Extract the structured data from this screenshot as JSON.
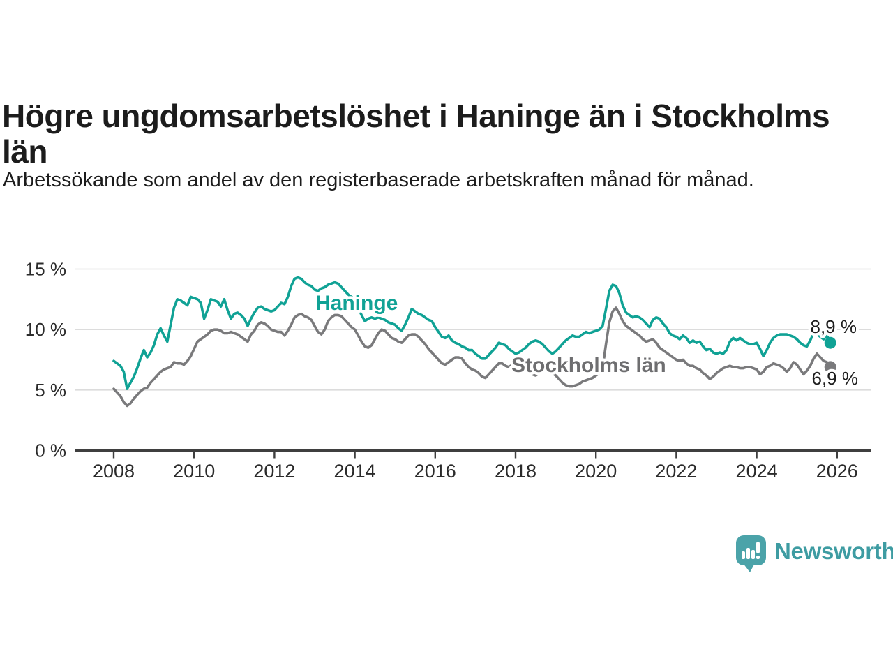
{
  "header": {
    "title": "Högre ungdomsarbetslöshet i Haninge än i Stockholms län",
    "subtitle": "Arbetssökande som andel av den registerbaserade arbetskraften månad för månad."
  },
  "chart_data": {
    "type": "line",
    "title": "Högre ungdomsarbetslöshet i Haninge än i Stockholms län",
    "xlabel": "",
    "ylabel": "",
    "grid": true,
    "legend_position": "inline-annotations",
    "x_start_year": 2008,
    "x_step_months": 1,
    "xlim": [
      2008,
      2026.4
    ],
    "ylim": [
      0,
      15.5
    ],
    "y_ticks": [
      {
        "value": 0,
        "label": "0 %"
      },
      {
        "value": 5,
        "label": "5 %"
      },
      {
        "value": 10,
        "label": "10 %"
      },
      {
        "value": 15,
        "label": "15 %"
      }
    ],
    "x_ticks": [
      {
        "value": 2008,
        "label": "2008"
      },
      {
        "value": 2010,
        "label": "2010"
      },
      {
        "value": 2012,
        "label": "2012"
      },
      {
        "value": 2014,
        "label": "2014"
      },
      {
        "value": 2016,
        "label": "2016"
      },
      {
        "value": 2018,
        "label": "2018"
      },
      {
        "value": 2020,
        "label": "2020"
      },
      {
        "value": 2022,
        "label": "2022"
      },
      {
        "value": 2024,
        "label": "2024"
      },
      {
        "value": 2026,
        "label": "2026"
      }
    ],
    "series": [
      {
        "name": "Stockholms län",
        "color": "#7a7a7c",
        "label_color": "#6e6e70",
        "end_label": "6,9 %",
        "values": [
          5.1,
          4.8,
          4.5,
          4.0,
          3.7,
          3.9,
          4.3,
          4.6,
          4.9,
          5.1,
          5.2,
          5.6,
          5.9,
          6.2,
          6.5,
          6.7,
          6.8,
          6.9,
          7.3,
          7.2,
          7.2,
          7.1,
          7.4,
          7.8,
          8.4,
          9.0,
          9.2,
          9.4,
          9.6,
          9.9,
          10.0,
          10.0,
          9.9,
          9.7,
          9.7,
          9.8,
          9.7,
          9.6,
          9.4,
          9.2,
          9.0,
          9.6,
          9.9,
          10.4,
          10.6,
          10.5,
          10.3,
          10.0,
          9.9,
          9.8,
          9.8,
          9.5,
          9.9,
          10.4,
          11.0,
          11.2,
          11.3,
          11.1,
          11.0,
          10.8,
          10.3,
          9.8,
          9.6,
          10.0,
          10.7,
          11.0,
          11.2,
          11.2,
          11.1,
          10.8,
          10.5,
          10.2,
          10.0,
          9.5,
          9.0,
          8.6,
          8.5,
          8.7,
          9.2,
          9.7,
          10.0,
          9.9,
          9.6,
          9.3,
          9.2,
          9.0,
          8.9,
          9.2,
          9.5,
          9.6,
          9.6,
          9.4,
          9.1,
          8.8,
          8.4,
          8.1,
          7.8,
          7.5,
          7.2,
          7.1,
          7.3,
          7.5,
          7.7,
          7.7,
          7.6,
          7.2,
          6.9,
          6.7,
          6.6,
          6.4,
          6.1,
          6.0,
          6.3,
          6.6,
          6.9,
          7.2,
          7.2,
          7.0,
          6.9,
          7.1,
          7.0,
          7.1,
          6.9,
          6.8,
          6.6,
          6.3,
          6.2,
          6.4,
          6.5,
          6.6,
          6.5,
          6.4,
          6.2,
          5.9,
          5.6,
          5.4,
          5.3,
          5.3,
          5.4,
          5.5,
          5.7,
          5.8,
          5.9,
          6.0,
          6.2,
          6.4,
          6.8,
          8.8,
          10.6,
          11.5,
          11.8,
          11.3,
          10.7,
          10.3,
          10.1,
          9.9,
          9.7,
          9.5,
          9.2,
          9.0,
          9.1,
          9.2,
          8.9,
          8.5,
          8.3,
          8.1,
          7.9,
          7.7,
          7.5,
          7.4,
          7.5,
          7.2,
          7.0,
          7.0,
          6.8,
          6.7,
          6.4,
          6.2,
          5.9,
          6.1,
          6.4,
          6.6,
          6.8,
          6.9,
          7.0,
          6.9,
          6.9,
          6.8,
          6.8,
          6.9,
          6.9,
          6.8,
          6.7,
          6.3,
          6.5,
          6.9,
          7.0,
          7.2,
          7.1,
          7.0,
          6.8,
          6.5,
          6.8,
          7.3,
          7.1,
          6.7,
          6.3,
          6.6,
          7.0,
          7.6,
          8.0,
          7.7,
          7.4,
          7.3,
          6.9
        ]
      },
      {
        "name": "Haninge",
        "color": "#10a295",
        "label_color": "#10a295",
        "end_label": "8,9 %",
        "values": [
          7.4,
          7.2,
          7.0,
          6.5,
          5.1,
          5.6,
          6.1,
          6.8,
          7.6,
          8.3,
          7.7,
          8.1,
          8.7,
          9.6,
          10.1,
          9.5,
          9.0,
          10.4,
          11.8,
          12.5,
          12.4,
          12.2,
          12.0,
          12.7,
          12.6,
          12.5,
          12.2,
          10.9,
          11.6,
          12.5,
          12.4,
          12.3,
          11.9,
          12.5,
          11.6,
          10.9,
          11.3,
          11.4,
          11.2,
          10.9,
          10.3,
          10.9,
          11.4,
          11.8,
          11.9,
          11.7,
          11.6,
          11.5,
          11.6,
          11.9,
          12.2,
          12.1,
          12.7,
          13.6,
          14.2,
          14.3,
          14.2,
          13.9,
          13.7,
          13.6,
          13.3,
          13.2,
          13.4,
          13.5,
          13.7,
          13.8,
          13.9,
          13.8,
          13.5,
          13.2,
          12.9,
          12.7,
          12.4,
          11.8,
          11.2,
          10.7,
          10.9,
          11.0,
          10.9,
          11.0,
          10.9,
          10.8,
          10.6,
          10.5,
          10.4,
          10.1,
          9.9,
          10.4,
          11.0,
          11.7,
          11.5,
          11.3,
          11.2,
          11.0,
          10.8,
          10.7,
          10.2,
          9.8,
          9.4,
          9.3,
          9.5,
          9.1,
          8.9,
          8.8,
          8.6,
          8.5,
          8.3,
          8.3,
          8.0,
          7.8,
          7.6,
          7.6,
          7.9,
          8.2,
          8.5,
          8.9,
          8.8,
          8.7,
          8.4,
          8.2,
          8.0,
          8.1,
          8.3,
          8.5,
          8.8,
          9.0,
          9.1,
          9.0,
          8.8,
          8.5,
          8.2,
          8.0,
          8.2,
          8.5,
          8.8,
          9.1,
          9.3,
          9.5,
          9.4,
          9.4,
          9.6,
          9.8,
          9.7,
          9.8,
          9.9,
          10.0,
          10.3,
          11.7,
          13.2,
          13.7,
          13.6,
          13.0,
          12.0,
          11.4,
          11.2,
          11.0,
          11.1,
          11.0,
          10.8,
          10.5,
          10.2,
          10.8,
          11.0,
          10.9,
          10.5,
          10.2,
          9.7,
          9.5,
          9.4,
          9.2,
          9.5,
          9.3,
          8.9,
          9.1,
          8.9,
          9.0,
          8.6,
          8.3,
          8.4,
          8.1,
          8.0,
          8.1,
          8.0,
          8.3,
          9.0,
          9.3,
          9.1,
          9.3,
          9.1,
          8.9,
          8.8,
          8.8,
          8.9,
          8.4,
          7.8,
          8.3,
          8.9,
          9.3,
          9.5,
          9.6,
          9.6,
          9.6,
          9.5,
          9.4,
          9.2,
          8.9,
          8.7,
          8.6,
          9.1,
          9.7,
          9.6,
          9.4,
          9.2,
          9.5,
          8.9
        ]
      }
    ]
  },
  "branding": {
    "logo_text": "Newsworthy",
    "logo_text_color": "#3e9ca2",
    "logo_icon_color": "#4ba3a9",
    "logo_icon": "bar-chart-speech-bubble-icon"
  },
  "colors": {
    "title": "#1c1c1c",
    "axis": "#3f3f3f",
    "tick_label": "#2b2b2b",
    "gridline": "#dcdcdc",
    "end_value_label": "#1d1d1d"
  }
}
